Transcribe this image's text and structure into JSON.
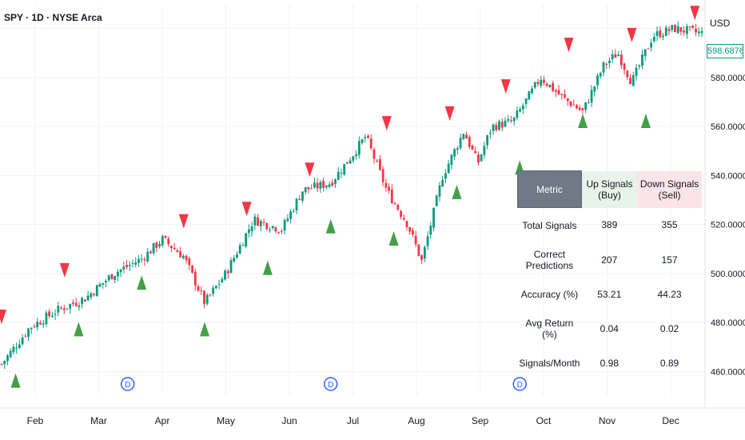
{
  "header": {
    "title": "SPY · 1D · NYSE Arca",
    "currency": "USD",
    "last_price": "598.68765"
  },
  "chart_data": {
    "type": "candlestick",
    "ylim": [
      450,
      610
    ],
    "y_ticks": [
      "580.00000",
      "560.00000",
      "540.00000",
      "520.00000",
      "500.00000",
      "480.00000",
      "460.00000"
    ],
    "x_ticks": [
      "Feb",
      "Mar",
      "Apr",
      "May",
      "Jun",
      "Jul",
      "Aug",
      "Sep",
      "Oct",
      "Nov",
      "Dec"
    ],
    "date_range": [
      "Jan",
      "Dec"
    ],
    "price_path": [
      {
        "t": 0.0,
        "close": 463
      },
      {
        "t": 0.04,
        "close": 478
      },
      {
        "t": 0.08,
        "close": 485
      },
      {
        "t": 0.12,
        "close": 490
      },
      {
        "t": 0.16,
        "close": 500
      },
      {
        "t": 0.2,
        "close": 506
      },
      {
        "t": 0.23,
        "close": 514
      },
      {
        "t": 0.26,
        "close": 507
      },
      {
        "t": 0.29,
        "close": 488
      },
      {
        "t": 0.32,
        "close": 500
      },
      {
        "t": 0.36,
        "close": 522
      },
      {
        "t": 0.4,
        "close": 518
      },
      {
        "t": 0.43,
        "close": 534
      },
      {
        "t": 0.47,
        "close": 537
      },
      {
        "t": 0.5,
        "close": 548
      },
      {
        "t": 0.52,
        "close": 556
      },
      {
        "t": 0.55,
        "close": 534
      },
      {
        "t": 0.58,
        "close": 520
      },
      {
        "t": 0.6,
        "close": 505
      },
      {
        "t": 0.63,
        "close": 540
      },
      {
        "t": 0.66,
        "close": 558
      },
      {
        "t": 0.68,
        "close": 545
      },
      {
        "t": 0.7,
        "close": 560
      },
      {
        "t": 0.73,
        "close": 562
      },
      {
        "t": 0.77,
        "close": 580
      },
      {
        "t": 0.8,
        "close": 572
      },
      {
        "t": 0.83,
        "close": 566
      },
      {
        "t": 0.86,
        "close": 585
      },
      {
        "t": 0.88,
        "close": 590
      },
      {
        "t": 0.9,
        "close": 578
      },
      {
        "t": 0.93,
        "close": 597
      },
      {
        "t": 0.96,
        "close": 600
      },
      {
        "t": 1.0,
        "close": 598
      }
    ],
    "sell_signals": [
      {
        "t": 0.0,
        "price": 482
      },
      {
        "t": 0.09,
        "price": 501
      },
      {
        "t": 0.26,
        "price": 521
      },
      {
        "t": 0.35,
        "price": 526
      },
      {
        "t": 0.44,
        "price": 542
      },
      {
        "t": 0.55,
        "price": 561
      },
      {
        "t": 0.64,
        "price": 565
      },
      {
        "t": 0.72,
        "price": 576
      },
      {
        "t": 0.81,
        "price": 593
      },
      {
        "t": 0.9,
        "price": 597
      },
      {
        "t": 0.99,
        "price": 606
      }
    ],
    "buy_signals": [
      {
        "t": 0.02,
        "price": 456
      },
      {
        "t": 0.11,
        "price": 477
      },
      {
        "t": 0.2,
        "price": 496
      },
      {
        "t": 0.29,
        "price": 477
      },
      {
        "t": 0.38,
        "price": 502
      },
      {
        "t": 0.47,
        "price": 519
      },
      {
        "t": 0.56,
        "price": 514
      },
      {
        "t": 0.65,
        "price": 533
      },
      {
        "t": 0.74,
        "price": 543
      },
      {
        "t": 0.83,
        "price": 562
      },
      {
        "t": 0.92,
        "price": 562
      }
    ],
    "dividend_markers": [
      {
        "t": 0.18,
        "label": "D"
      },
      {
        "t": 0.47,
        "label": "D"
      },
      {
        "t": 0.74,
        "label": "D"
      }
    ],
    "colors": {
      "up": "#089981",
      "down": "#f23645",
      "buy": "#43a047",
      "sell": "#f23645",
      "dividend": "#2962ff"
    }
  },
  "table": {
    "headers": [
      "Metric",
      "Up Signals (Buy)",
      "Down Signals (Sell)"
    ],
    "rows": [
      [
        "Total Signals",
        "389",
        "355"
      ],
      [
        "Correct Predictions",
        "207",
        "157"
      ],
      [
        "Accuracy (%)",
        "53.21",
        "44.23"
      ],
      [
        "Avg Return (%)",
        "0.04",
        "0.02"
      ],
      [
        "Signals/Month",
        "0.98",
        "0.89"
      ]
    ]
  }
}
